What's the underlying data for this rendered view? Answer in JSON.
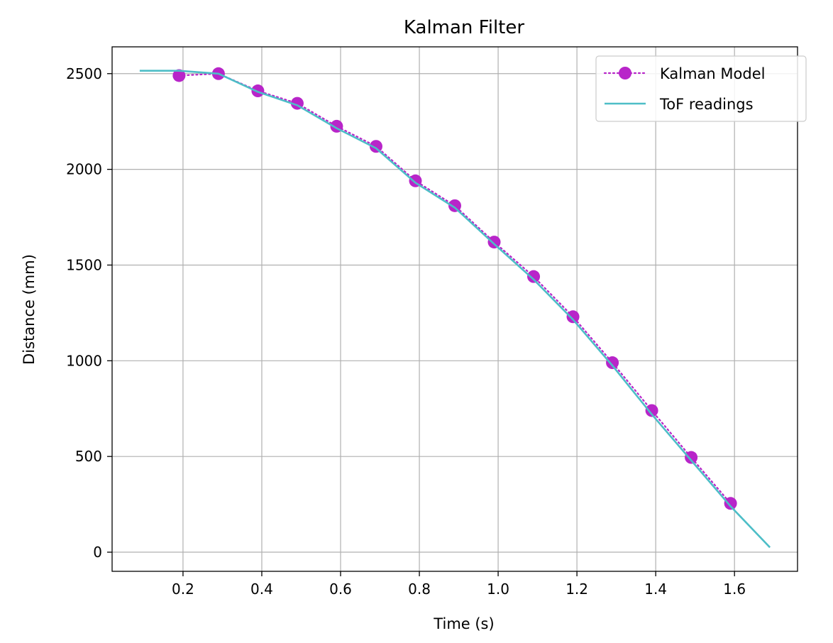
{
  "chart_data": {
    "type": "line",
    "title": "Kalman Filter",
    "xlabel": "Time (s)",
    "ylabel": "Distance (mm)",
    "xlim": [
      0.02,
      1.76
    ],
    "ylim": [
      -100,
      2640
    ],
    "xticks": [
      0.2,
      0.4,
      0.6,
      0.8,
      1.0,
      1.2,
      1.4,
      1.6
    ],
    "xtick_labels": [
      "0.2",
      "0.4",
      "0.6",
      "0.8",
      "1.0",
      "1.2",
      "1.4",
      "1.6"
    ],
    "yticks": [
      0,
      500,
      1000,
      1500,
      2000,
      2500
    ],
    "ytick_labels": [
      "0",
      "500",
      "1000",
      "1500",
      "2000",
      "2500"
    ],
    "grid": true,
    "legend_position": "top-right",
    "series": [
      {
        "name": "Kalman Model",
        "style": "dotted-line-with-markers",
        "color": "#b825c9",
        "x": [
          0.19,
          0.29,
          0.39,
          0.49,
          0.59,
          0.69,
          0.79,
          0.89,
          0.99,
          1.09,
          1.19,
          1.29,
          1.39,
          1.49,
          1.59
        ],
        "y": [
          2490,
          2500,
          2410,
          2345,
          2225,
          2120,
          1940,
          1810,
          1620,
          1440,
          1230,
          990,
          740,
          495,
          255
        ]
      },
      {
        "name": "ToF readings",
        "style": "solid-line",
        "color": "#4dbec7",
        "x": [
          0.09,
          0.19,
          0.29,
          0.39,
          0.49,
          0.59,
          0.69,
          0.79,
          0.89,
          0.99,
          1.09,
          1.19,
          1.29,
          1.39,
          1.49,
          1.59,
          1.69
        ],
        "y": [
          2515,
          2515,
          2500,
          2405,
          2335,
          2215,
          2110,
          1930,
          1800,
          1610,
          1425,
          1215,
          975,
          720,
          480,
          240,
          25
        ]
      }
    ]
  }
}
